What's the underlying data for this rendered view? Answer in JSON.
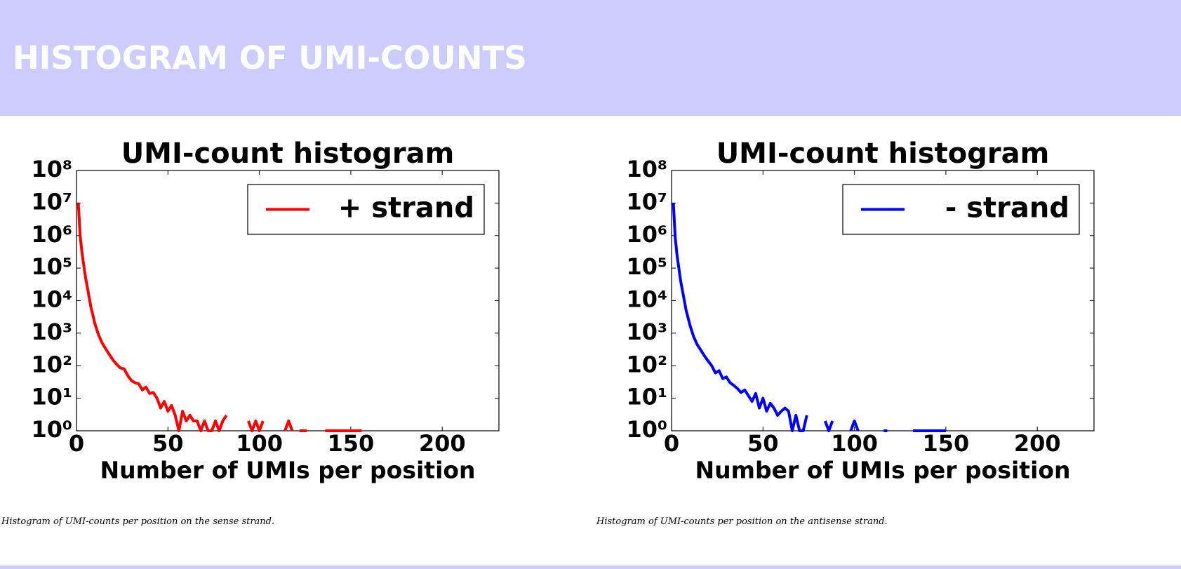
{
  "header": {
    "title": "HISTOGRAM OF UMI-COUNTS"
  },
  "captions": [
    "Histogram of UMI-counts per position on the sense strand.",
    "Histogram of UMI-counts per position on the antisense strand."
  ],
  "chart_data": [
    {
      "type": "line",
      "title": "UMI-count histogram",
      "xlabel": "Number of UMIs per position",
      "yscale": "log",
      "grid": false,
      "legend": "upper right",
      "xlim": [
        0,
        231
      ],
      "ylim": [
        1,
        100000000
      ],
      "xticks": [
        0,
        50,
        100,
        150,
        200
      ],
      "yticks": [
        {
          "value": 1,
          "label": "10⁰"
        },
        {
          "value": 10,
          "label": "10¹"
        },
        {
          "value": 100,
          "label": "10²"
        },
        {
          "value": 1000,
          "label": "10³"
        },
        {
          "value": 10000,
          "label": "10⁴"
        },
        {
          "value": 100000,
          "label": "10⁵"
        },
        {
          "value": 1000000,
          "label": "10⁶"
        },
        {
          "value": 10000000,
          "label": "10⁷"
        },
        {
          "value": 100000000,
          "label": "10⁸"
        }
      ],
      "x": [
        1,
        2,
        3,
        4,
        5,
        6,
        7,
        8,
        9,
        10,
        12,
        14,
        16,
        18,
        20,
        22,
        24,
        26,
        28,
        30,
        32,
        34,
        36,
        38,
        40,
        42,
        44,
        46,
        48,
        50,
        52,
        54,
        56,
        58,
        60,
        62,
        64,
        66,
        68,
        70,
        72,
        74,
        76,
        78,
        80,
        82,
        84,
        94,
        96,
        98,
        100,
        102,
        104,
        114,
        116,
        118,
        120,
        122,
        126,
        128,
        136,
        138,
        154,
        156
      ],
      "series": [
        {
          "name": "+ strand",
          "color": "#ff0000",
          "values": [
            10000000,
            1000000,
            300000,
            120000,
            50000,
            25000,
            12000,
            6000,
            3500,
            2000,
            900,
            500,
            330,
            220,
            150,
            110,
            85,
            80,
            50,
            35,
            30,
            28,
            18,
            22,
            14,
            15,
            10,
            5,
            8,
            4,
            6,
            3,
            1,
            4,
            2,
            3,
            2,
            2,
            1,
            2,
            1,
            1,
            2,
            1,
            2,
            3,
            null,
            2,
            1,
            2,
            1,
            2,
            null,
            1,
            2,
            1,
            null,
            1,
            1,
            null,
            1,
            1,
            1,
            1
          ]
        }
      ]
    },
    {
      "type": "line",
      "title": "UMI-count histogram",
      "xlabel": "Number of UMIs per position",
      "yscale": "log",
      "grid": false,
      "legend": "upper right",
      "xlim": [
        0,
        231
      ],
      "ylim": [
        1,
        100000000
      ],
      "xticks": [
        0,
        50,
        100,
        150,
        200
      ],
      "yticks": [
        {
          "value": 1,
          "label": "10⁰"
        },
        {
          "value": 10,
          "label": "10¹"
        },
        {
          "value": 100,
          "label": "10²"
        },
        {
          "value": 1000,
          "label": "10³"
        },
        {
          "value": 10000,
          "label": "10⁴"
        },
        {
          "value": 100000,
          "label": "10⁵"
        },
        {
          "value": 1000000,
          "label": "10⁶"
        },
        {
          "value": 10000000,
          "label": "10⁷"
        },
        {
          "value": 100000000,
          "label": "10⁸"
        }
      ],
      "x": [
        1,
        2,
        3,
        4,
        5,
        6,
        7,
        8,
        9,
        10,
        12,
        14,
        16,
        18,
        20,
        22,
        24,
        26,
        28,
        30,
        32,
        34,
        36,
        38,
        40,
        42,
        44,
        46,
        48,
        50,
        52,
        54,
        56,
        58,
        60,
        62,
        64,
        66,
        68,
        70,
        72,
        74,
        76,
        84,
        86,
        88,
        90,
        98,
        100,
        102,
        112,
        116,
        118,
        128,
        132,
        134,
        138,
        146,
        150
      ],
      "series": [
        {
          "name": "- strand",
          "color": "#0000ff",
          "values": [
            10000000,
            900000,
            250000,
            100000,
            40000,
            20000,
            10000,
            5000,
            3000,
            1800,
            800,
            450,
            300,
            200,
            140,
            100,
            60,
            70,
            40,
            45,
            30,
            25,
            20,
            15,
            18,
            12,
            8,
            14,
            5,
            10,
            4,
            7,
            5,
            3,
            4,
            5,
            4,
            1,
            3,
            1,
            1,
            3,
            null,
            2,
            1,
            2,
            null,
            1,
            2,
            1,
            null,
            1,
            1,
            null,
            1,
            1,
            1,
            1,
            1
          ]
        }
      ]
    }
  ]
}
